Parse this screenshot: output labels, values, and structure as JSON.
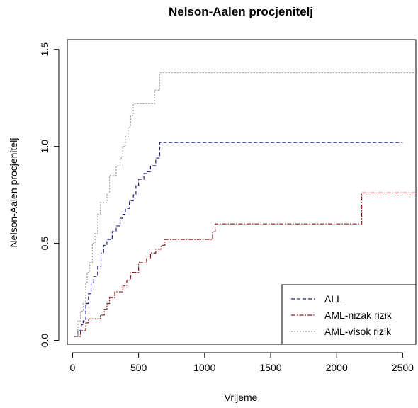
{
  "chart_data": {
    "type": "line",
    "step": true,
    "title": "Nelson-Aalen procjenitelj",
    "xlabel": "Vrijeme",
    "ylabel": "Nelson-Aalen procjenitelj",
    "xlim": [
      -40,
      2600
    ],
    "ylim": [
      -0.02,
      1.55
    ],
    "xticks": [
      0,
      500,
      1000,
      1500,
      2000,
      2500
    ],
    "yticks": [
      0.0,
      0.5,
      1.0,
      1.5
    ],
    "xtick_labels": [
      "0",
      "500",
      "1000",
      "1500",
      "2000",
      "2500"
    ],
    "ytick_labels": [
      "0.0",
      "0.5",
      "1.0",
      "1.5"
    ],
    "grid": false,
    "legend_position": "bottom-right",
    "series": [
      {
        "name": "ALL",
        "color": "#1c1c8c",
        "dash": "dashed",
        "x": [
          10,
          40,
          65,
          80,
          100,
          120,
          140,
          160,
          190,
          215,
          235,
          260,
          300,
          330,
          360,
          380,
          400,
          430,
          460,
          480,
          500,
          540,
          560,
          590,
          630,
          660,
          2500
        ],
        "y": [
          0.02,
          0.05,
          0.08,
          0.1,
          0.19,
          0.24,
          0.3,
          0.33,
          0.38,
          0.45,
          0.49,
          0.52,
          0.56,
          0.59,
          0.63,
          0.65,
          0.68,
          0.72,
          0.75,
          0.8,
          0.83,
          0.86,
          0.87,
          0.9,
          0.94,
          1.02,
          1.02
        ]
      },
      {
        "name": "AML-nizak rizik",
        "color": "#8b1a1a",
        "dash": "dashdot",
        "x": [
          10,
          60,
          100,
          120,
          170,
          210,
          240,
          260,
          280,
          320,
          380,
          410,
          440,
          500,
          560,
          590,
          630,
          670,
          700,
          740,
          1060,
          1080,
          2190,
          2600
        ],
        "y": [
          0.02,
          0.05,
          0.09,
          0.11,
          0.11,
          0.13,
          0.16,
          0.19,
          0.22,
          0.25,
          0.28,
          0.31,
          0.35,
          0.4,
          0.42,
          0.45,
          0.47,
          0.49,
          0.52,
          0.52,
          0.56,
          0.6,
          0.76,
          0.76
        ]
      },
      {
        "name": "AML-visok rizik",
        "color": "#9a9a9a",
        "dash": "dotted",
        "x": [
          20,
          40,
          60,
          80,
          100,
          110,
          130,
          150,
          170,
          190,
          210,
          240,
          260,
          280,
          300,
          330,
          360,
          380,
          400,
          420,
          440,
          460,
          480,
          620,
          660,
          2600
        ],
        "y": [
          0.02,
          0.1,
          0.15,
          0.19,
          0.3,
          0.35,
          0.4,
          0.5,
          0.55,
          0.65,
          0.71,
          0.71,
          0.76,
          0.85,
          0.85,
          0.9,
          0.94,
          1.0,
          1.05,
          1.1,
          1.16,
          1.22,
          1.22,
          1.29,
          1.38,
          1.38
        ]
      }
    ]
  }
}
